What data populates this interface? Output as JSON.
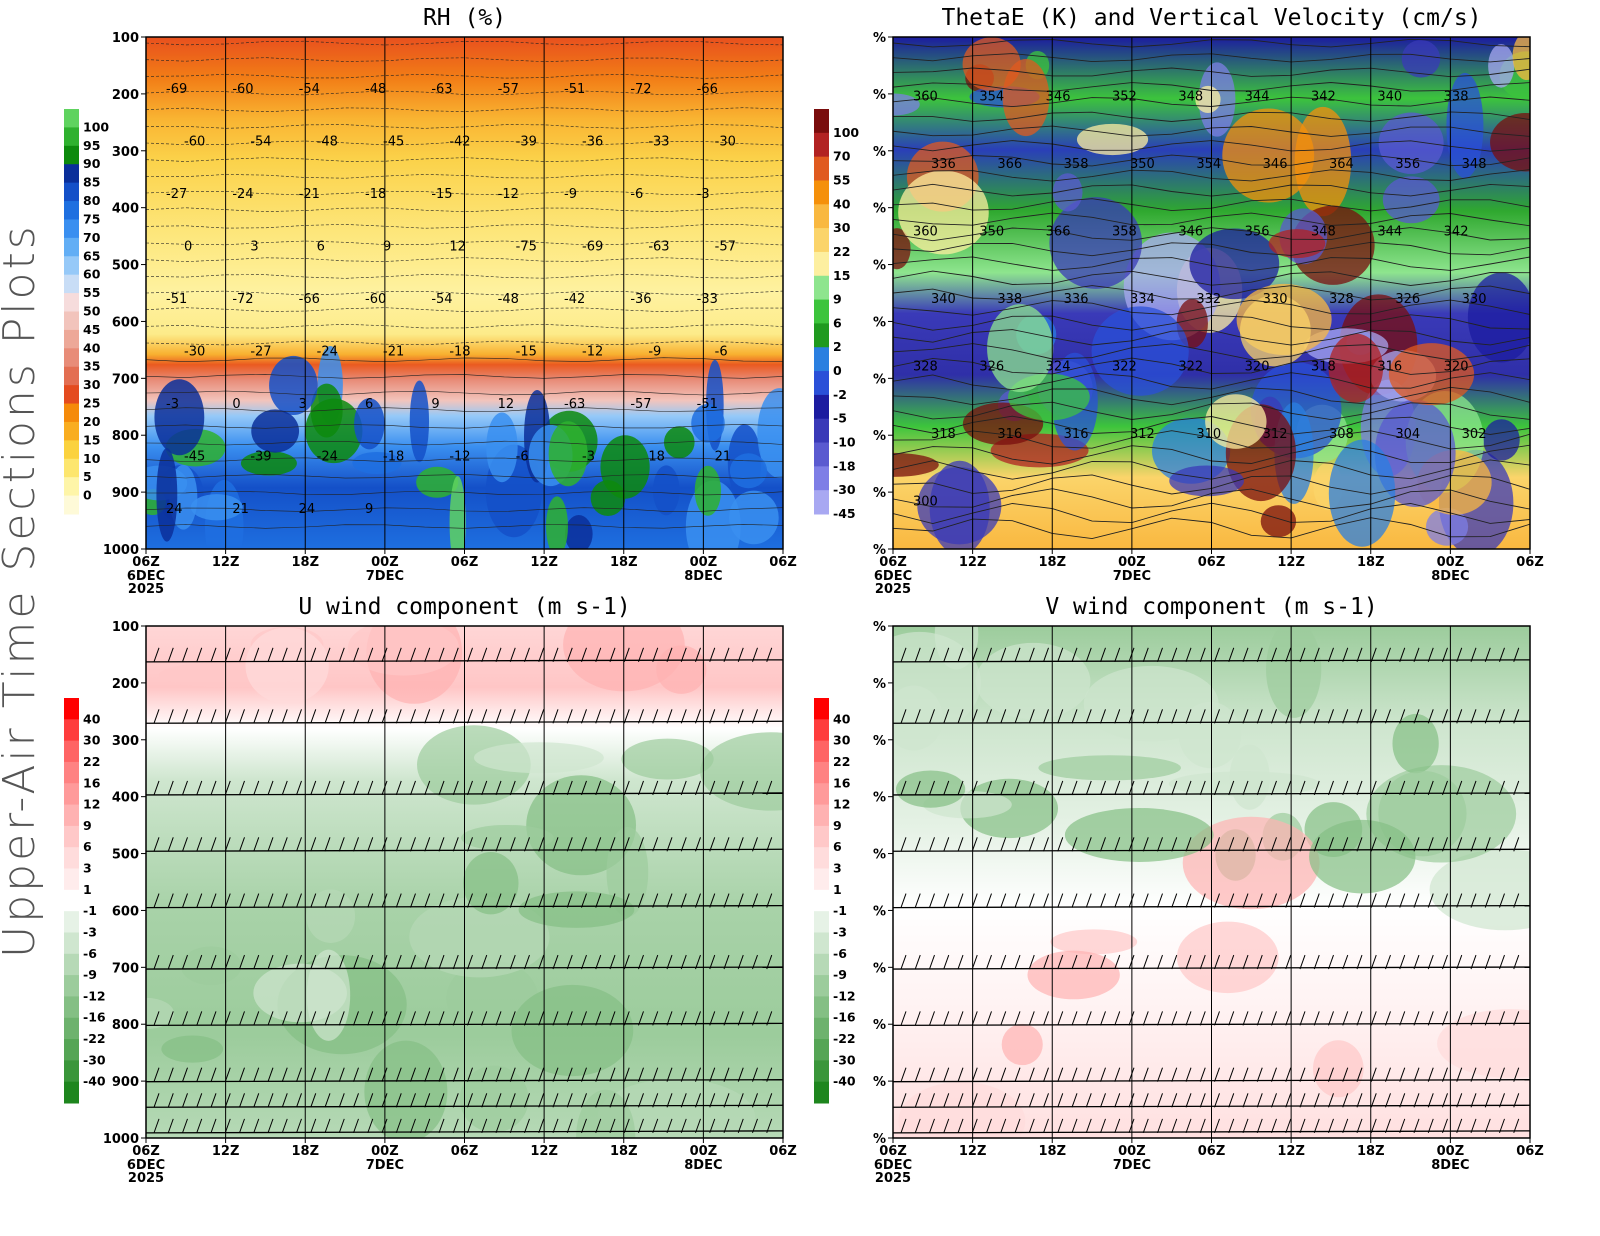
{
  "side_title": "Upper-Air Time Sections Plots",
  "x_ticks": [
    "06Z",
    "12Z",
    "18Z",
    "00Z",
    "06Z",
    "12Z",
    "18Z",
    "00Z",
    "06Z"
  ],
  "x_sub": {
    "0": [
      "6DEC",
      "2025"
    ],
    "3": [
      "7DEC"
    ],
    "7": [
      "8DEC"
    ]
  },
  "y_ticks_pressure": [
    "100",
    "200",
    "300",
    "400",
    "500",
    "600",
    "700",
    "800",
    "900",
    "1000"
  ],
  "y_ticks_percent": [
    "%",
    "%",
    "%",
    "%",
    "%",
    "%",
    "%",
    "%",
    "%",
    "%"
  ],
  "chart_data": [
    {
      "id": "rh",
      "type": "heatmap",
      "title": "RH (%)",
      "y_axis": "pressure",
      "xlabel": "",
      "ylabel": "",
      "ylim": [
        100,
        1000
      ],
      "colorbar": {
        "levels": [
          "100",
          "95",
          "90",
          "85",
          "80",
          "75",
          "70",
          "65",
          "60",
          "55",
          "50",
          "45",
          "40",
          "35",
          "30",
          "25",
          "20",
          "15",
          "10",
          "5",
          "0"
        ],
        "colors": [
          "#5fd35f",
          "#2fb12f",
          "#0d8a0d",
          "#0a2f9a",
          "#1450c8",
          "#1e6fe0",
          "#3a8ff0",
          "#62aef5",
          "#96c9f8",
          "#c8ddf6",
          "#f6dcdc",
          "#f2c4bc",
          "#eda898",
          "#e88c78",
          "#e36e52",
          "#e44b1f",
          "#f58a0a",
          "#f9ad20",
          "#fbd23e",
          "#fde66e",
          "#fef5a8",
          "#fefad8"
        ]
      },
      "contour_labels": [
        "-69",
        "-60",
        "-54",
        "-48",
        "-63",
        "-57",
        "-51",
        "-72",
        "-66",
        "-60",
        "-54",
        "-48",
        "-45",
        "-42",
        "-39",
        "-36",
        "-33",
        "-30",
        "-27",
        "-24",
        "-21",
        "-18",
        "-15",
        "-12",
        "-9",
        "-6",
        "-3",
        "0",
        "3",
        "6",
        "9",
        "12",
        "-75",
        "-69",
        "-63",
        "-57",
        "-51",
        "-72",
        "-66",
        "-60",
        "-54",
        "-48",
        "-42",
        "-36",
        "-33",
        "-30",
        "-27",
        "-24",
        "-21",
        "-18",
        "-15",
        "-12",
        "-9",
        "-6",
        "-3",
        "0",
        "3",
        "6",
        "9",
        "12",
        "-63",
        "-57",
        "-51",
        "-45",
        "-39",
        "-24",
        "-18",
        "-12",
        "-6",
        "-3",
        "18",
        "21",
        "24",
        "21",
        "24",
        "9"
      ]
    },
    {
      "id": "thetae",
      "type": "heatmap",
      "title": "ThetaE (K) and Vertical Velocity (cm/s)",
      "y_axis": "percent",
      "xlabel": "",
      "ylabel": "",
      "colorbar": {
        "levels": [
          "100",
          "70",
          "55",
          "40",
          "30",
          "22",
          "15",
          "9",
          "6",
          "2",
          "0",
          "-2",
          "-5",
          "-10",
          "-18",
          "-30",
          "-45"
        ],
        "colors": [
          "#7a0d0d",
          "#b22222",
          "#e05a1f",
          "#f5900a",
          "#f9b840",
          "#fbd46a",
          "#fdefa0",
          "#8ee58e",
          "#3cc43c",
          "#1f9a1f",
          "#2a7fe0",
          "#2a50d8",
          "#1c1ca0",
          "#3a3ab8",
          "#5a5ad0",
          "#7e7ee6",
          "#a8a8f2"
        ]
      },
      "contour_labels": [
        "360",
        "354",
        "346",
        "352",
        "348",
        "344",
        "342",
        "340",
        "338",
        "336",
        "366",
        "358",
        "350",
        "354",
        "346",
        "364",
        "356",
        "348",
        "360",
        "350",
        "366",
        "358",
        "346",
        "356",
        "348",
        "344",
        "342",
        "340",
        "338",
        "336",
        "334",
        "332",
        "330",
        "328",
        "326",
        "330",
        "328",
        "326",
        "324",
        "322",
        "322",
        "320",
        "318",
        "316",
        "320",
        "318",
        "316",
        "316",
        "312",
        "310",
        "312",
        "308",
        "304",
        "302",
        "300"
      ]
    },
    {
      "id": "uwind",
      "type": "heatmap",
      "title": "U wind component (m s-1)",
      "y_axis": "pressure",
      "xlabel": "",
      "ylabel": "",
      "ylim": [
        100,
        1000
      ],
      "colorbar": {
        "levels": [
          "40",
          "30",
          "22",
          "16",
          "12",
          "9",
          "6",
          "3",
          "1",
          "-1",
          "-3",
          "-6",
          "-9",
          "-12",
          "-16",
          "-22",
          "-30",
          "-40"
        ],
        "colors": [
          "#ff0000",
          "#ff3c3c",
          "#ff6464",
          "#ff8282",
          "#ff9a9a",
          "#ffb2b2",
          "#ffc8c8",
          "#ffdcdc",
          "#ffecec",
          "#ffffff",
          "#e6f2e6",
          "#cfe6cf",
          "#b6d9b6",
          "#9ccc9c",
          "#84bf84",
          "#6db26d",
          "#55a555",
          "#3a963a",
          "#1e861e"
        ]
      }
    },
    {
      "id": "vwind",
      "type": "heatmap",
      "title": "V wind component (m s-1)",
      "y_axis": "percent",
      "xlabel": "",
      "ylabel": "",
      "colorbar": {
        "levels": [
          "40",
          "30",
          "22",
          "16",
          "12",
          "9",
          "6",
          "3",
          "1",
          "-1",
          "-3",
          "-6",
          "-9",
          "-12",
          "-16",
          "-22",
          "-30",
          "-40"
        ],
        "colors": [
          "#ff0000",
          "#ff3c3c",
          "#ff6464",
          "#ff8282",
          "#ff9a9a",
          "#ffb2b2",
          "#ffc8c8",
          "#ffdcdc",
          "#ffecec",
          "#ffffff",
          "#e6f2e6",
          "#cfe6cf",
          "#b6d9b6",
          "#9ccc9c",
          "#84bf84",
          "#6db26d",
          "#55a555",
          "#3a963a",
          "#1e861e"
        ]
      }
    }
  ]
}
